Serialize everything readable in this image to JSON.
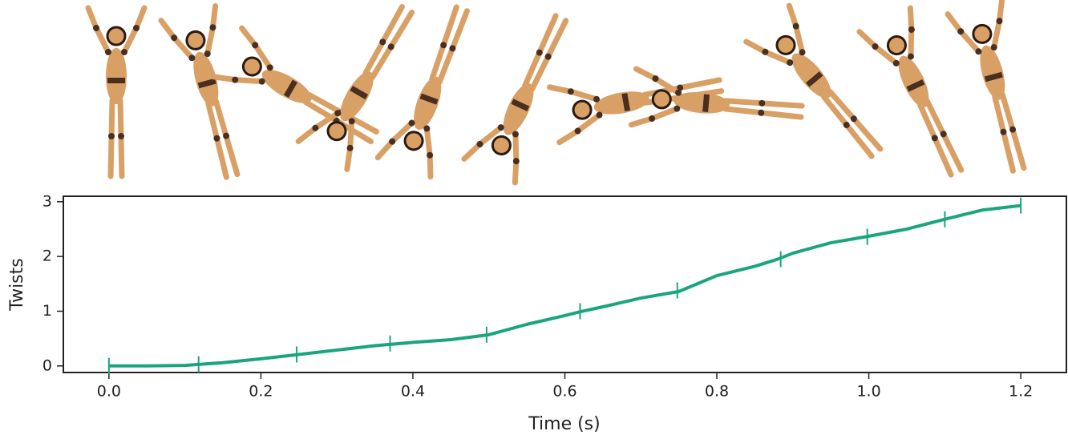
{
  "chart_data": {
    "type": "line",
    "xlabel": "Time (s)",
    "ylabel": "Twists",
    "xlim": [
      -0.06,
      1.26
    ],
    "ylim": [
      -0.12,
      3.1
    ],
    "xticks": [
      {
        "value": 0,
        "label": "0.0"
      },
      0.2,
      0.4,
      0.6,
      0.8,
      {
        "value": 1,
        "label": "1.0"
      },
      1.2
    ],
    "yticks": [
      0,
      1,
      2,
      3
    ],
    "series": [
      {
        "color": "#1aa57f",
        "x": [
          0,
          0.05,
          0.1,
          0.12,
          0.15,
          0.2,
          0.25,
          0.3,
          0.35,
          0.4,
          0.45,
          0.5,
          0.55,
          0.6,
          0.62,
          0.65,
          0.7,
          0.75,
          0.8,
          0.85,
          0.88,
          0.9,
          0.95,
          1.0,
          1.05,
          1.1,
          1.15,
          1.2
        ],
        "values": [
          0,
          0,
          0.01,
          0.03,
          0.06,
          0.13,
          0.21,
          0.29,
          0.37,
          0.43,
          0.48,
          0.57,
          0.76,
          0.92,
          0.99,
          1.08,
          1.24,
          1.36,
          1.65,
          1.82,
          1.95,
          2.06,
          2.25,
          2.37,
          2.5,
          2.68,
          2.85,
          2.93
        ]
      },
      {
        "color": "#1aa57f",
        "marker": "|",
        "x": [
          0,
          0.118,
          0.247,
          0.37,
          0.497,
          0.62,
          0.748,
          0.884,
          0.998,
          1.1,
          1.2
        ],
        "values": [
          0,
          0.03,
          0.21,
          0.41,
          0.57,
          1.0,
          1.38,
          1.95,
          2.36,
          2.68,
          2.93
        ]
      }
    ]
  }
}
